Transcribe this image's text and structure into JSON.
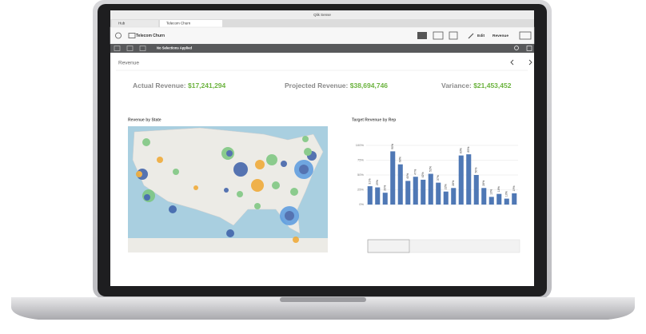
{
  "window": {
    "title": "Qlik Sense",
    "tabs": [
      "Hub",
      "Telecom Churn"
    ]
  },
  "toolbar": {
    "app_title": "Telecom Churn",
    "edit": "Edit",
    "sheet_button": "Revenue"
  },
  "selections": "No Selections Applied",
  "sheet": {
    "title": "Revenue",
    "kpis": [
      {
        "label": "Actual Revenue:",
        "value": "$17,241,294"
      },
      {
        "label": "Projected Revenue:",
        "value": "$38,694,746"
      },
      {
        "label": "Variance:",
        "value": "$21,453,452"
      }
    ]
  },
  "map": {
    "title": "Revenue by State"
  },
  "chart_data": {
    "type": "bar",
    "title": "Target Revenue by Rep",
    "values": [
      31,
      29,
      20,
      90,
      68,
      40,
      47,
      42,
      52,
      37,
      22,
      28,
      83,
      85,
      50,
      28,
      13,
      18,
      10,
      19
    ],
    "value_labels": [
      "31%",
      "29%",
      "20%",
      "90%",
      "68%",
      "40%",
      "47%",
      "42%",
      "52%",
      "37%",
      "22%",
      "28%",
      "83%",
      "85%",
      "50%",
      "28%",
      "13%",
      "18%",
      "10%",
      "19%"
    ],
    "color": "#4f78b5",
    "ylim": [
      0,
      100
    ],
    "yticks": [
      {
        "value": 0,
        "label": "0%"
      },
      {
        "value": 25,
        "label": "25%"
      },
      {
        "value": 50,
        "label": "50%"
      },
      {
        "value": 75,
        "label": "75%"
      },
      {
        "value": 100,
        "label": "100%"
      }
    ],
    "grid": true
  }
}
